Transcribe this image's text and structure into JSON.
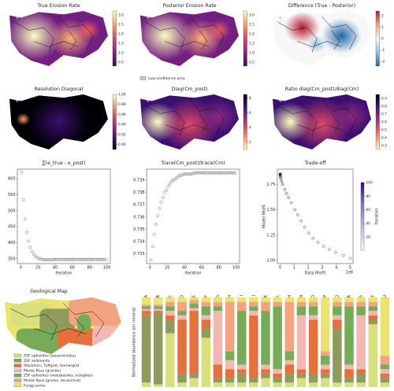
{
  "chart_data": [
    {
      "type": "heatmap",
      "title": "True Erosion Rate",
      "colormap": [
        "#2c115f",
        "#721f81",
        "#b73779",
        "#f1605d",
        "#feb078",
        "#fcfdbf"
      ],
      "base": 1,
      "colorbar_lim": [
        0.3,
        3.2
      ],
      "colorbar_ticks": [
        0.5,
        {
          "value": 1,
          "label": "1.0"
        },
        1.5,
        {
          "value": 2,
          "label": "2.0"
        },
        2.5,
        {
          "value": 3,
          "label": "3.0"
        }
      ]
    },
    {
      "type": "heatmap",
      "title": "Posterior Erosion Rate",
      "colormap": [
        "#2c115f",
        "#721f81",
        "#b73779",
        "#f1605d",
        "#feb078",
        "#fcfdbf"
      ],
      "base": 1,
      "colorbar_lim": [
        0.3,
        3.2
      ],
      "colorbar_ticks": [
        0.5,
        {
          "value": 1,
          "label": "1.0"
        },
        1.5,
        {
          "value": 2,
          "label": "2.0"
        },
        2.5,
        {
          "value": 3,
          "label": "3.0"
        }
      ],
      "annotation": "Low-confidence area"
    },
    {
      "type": "heatmap",
      "title": "Difference (True - Posterior)",
      "colormap": [
        "#2166ac",
        "#92c5de",
        "#f7f7f7",
        "#f4a582",
        "#b2182b"
      ],
      "base": 2,
      "colorbar_lim": [
        -2.4,
        2.4
      ],
      "colorbar_ticks": [
        -2,
        -1,
        0,
        1,
        2
      ]
    },
    {
      "type": "heatmap",
      "title": "Resolution Diagonal",
      "colormap": [
        "#000004",
        "#3b0f70",
        "#8c2981",
        "#de4968",
        "#fe9f6d",
        "#fcfdbf"
      ],
      "base": 0,
      "colorbar_lim": [
        0.89,
        1.0
      ],
      "colorbar_ticks": [
        {
          "value": 0.9,
          "label": "0.90"
        },
        0.92,
        0.94,
        0.96,
        0.98,
        {
          "value": 1,
          "label": "1.00"
        }
      ]
    },
    {
      "type": "heatmap",
      "title": "Diag(Cm_post)",
      "colormap": [
        "#fcfdbf",
        "#fe9f6d",
        "#de4968",
        "#8c2981",
        "#3b0f70",
        "#000004"
      ],
      "base": 4,
      "colorbar_lim": [
        1,
        8.5
      ],
      "colorbar_ticks": [
        2,
        4,
        6,
        8
      ]
    },
    {
      "type": "heatmap",
      "title": "Ratio diag(Cm_post)/diag(Cm)",
      "colormap": [
        "#fcfdbf",
        "#fe9f6d",
        "#de4968",
        "#8c2981",
        "#3b0f70",
        "#000004"
      ],
      "base": 4,
      "colorbar_lim": [
        0.25,
        0.95
      ],
      "colorbar_ticks": [
        0.3,
        0.4,
        0.5,
        0.6,
        0.7,
        0.8,
        0.9
      ]
    },
    {
      "type": "scatter",
      "title": "∑(e_true - e_post)",
      "xlabel": "Iteration",
      "color": "#555555",
      "x": [
        1,
        3,
        5,
        7,
        9,
        11,
        13,
        15,
        17,
        19,
        21,
        23,
        25,
        27,
        29,
        31,
        33,
        35,
        37,
        39,
        41,
        43,
        45,
        47,
        49,
        51,
        53,
        55,
        57,
        59,
        61,
        63,
        65,
        67,
        69,
        71,
        73,
        75,
        77,
        79,
        81,
        83,
        85,
        87,
        89,
        91,
        93,
        95,
        97,
        99
      ],
      "values": [
        620,
        534,
        474,
        433,
        405,
        386,
        373,
        364,
        358,
        354,
        351,
        349,
        348,
        347,
        347,
        347,
        347,
        347,
        347,
        348,
        348,
        348,
        348,
        348,
        348,
        348,
        348,
        348,
        348,
        348,
        348,
        348,
        348,
        348,
        348,
        348,
        348,
        348,
        348,
        348,
        348,
        348,
        348,
        348,
        348,
        348,
        348,
        348,
        348,
        348
      ],
      "xlim": [
        -4,
        104
      ],
      "xticks": [
        0,
        20,
        40,
        60,
        80,
        100
      ],
      "ylim": [
        335,
        630
      ],
      "yticks": [
        350,
        400,
        450,
        500,
        550,
        600
      ]
    },
    {
      "type": "scatter",
      "title": "Trace(Cm_post)/trace(Cm)",
      "xlabel": "Iteration",
      "color": "#555555",
      "x": [
        1,
        3,
        5,
        7,
        9,
        11,
        13,
        15,
        17,
        19,
        21,
        23,
        25,
        27,
        29,
        31,
        33,
        35,
        37,
        39,
        41,
        43,
        45,
        47,
        49,
        51,
        53,
        55,
        57,
        59,
        61,
        63,
        65,
        67,
        69,
        71,
        73,
        75,
        77,
        79,
        81,
        83,
        85,
        87,
        89,
        91,
        93,
        95,
        97,
        99
      ],
      "values": [
        0.7325,
        0.7336,
        0.7346,
        0.7354,
        0.7361,
        0.7367,
        0.7372,
        0.7376,
        0.738,
        0.7382,
        0.7385,
        0.7387,
        0.7389,
        0.739,
        0.7391,
        0.7392,
        0.7393,
        0.7394,
        0.7394,
        0.7395,
        0.7395,
        0.7395,
        0.7395,
        0.7395,
        0.7395,
        0.7396,
        0.7396,
        0.7396,
        0.7396,
        0.7396,
        0.7396,
        0.7396,
        0.7396,
        0.7396,
        0.7396,
        0.7396,
        0.7396,
        0.7396,
        0.7396,
        0.7396,
        0.7396,
        0.7396,
        0.7396,
        0.7396,
        0.7396,
        0.7396,
        0.7396,
        0.7396,
        0.7396,
        0.7396
      ],
      "xlim": [
        -4,
        104
      ],
      "xticks": [
        0,
        20,
        40,
        60,
        80,
        100
      ],
      "ylim": [
        0.7322,
        0.7399
      ],
      "yticks": [
        0.733,
        0.734,
        0.735,
        0.736,
        0.737,
        0.738,
        0.739
      ]
    },
    {
      "type": "scatter",
      "title": "Trade-off",
      "xlabel": "Data Misfit",
      "ylabel": "Model Misfit",
      "x_offset_label": "1e8",
      "colorbar_label": "Iteration",
      "colormap": [
        "#fcfbfd",
        "#bcbddc",
        "#807dba",
        "#3f007d"
      ],
      "x": [
        5.0,
        4.5,
        3.95,
        3.5,
        3.1,
        2.7,
        2.35,
        2.05,
        1.75,
        1.5,
        1.25,
        1.05,
        0.8,
        0.6,
        0.45,
        0.33,
        0.18,
        0.1,
        0.04,
        0.02,
        0.01,
        0.005,
        0.003,
        0.002,
        0.001
      ],
      "values": [
        1.02,
        1.05,
        1.08,
        1.11,
        1.14,
        1.18,
        1.22,
        1.27,
        1.33,
        1.39,
        1.45,
        1.5,
        1.57,
        1.62,
        1.66,
        1.7,
        1.75,
        1.78,
        1.81,
        1.83,
        1.84,
        1.845,
        1.85,
        1.85,
        1.85
      ],
      "iterations": [
        1,
        2,
        3,
        4,
        5,
        6,
        7,
        8,
        9,
        10,
        11,
        12,
        14,
        16,
        18,
        20,
        25,
        30,
        40,
        50,
        60,
        70,
        80,
        90,
        100
      ],
      "xlim": [
        -0.2,
        5.2
      ],
      "xticks": [
        0,
        1,
        2,
        3,
        4,
        5
      ],
      "ylim": [
        0.97,
        1.9
      ],
      "yticks": [
        {
          "value": 1,
          "label": "1.00"
        },
        1.25,
        {
          "value": 1.5,
          "label": "1.50"
        },
        1.75
      ],
      "colorbar_lim": [
        1,
        100
      ],
      "colorbar_ticks": [
        20,
        40,
        60,
        80,
        100
      ]
    },
    {
      "type": "map",
      "title": "Geological Map"
    },
    {
      "type": "stacked_bar",
      "ylabel": "Normalized abundance per mineral",
      "ylim": [
        0,
        1
      ],
      "categories": [
        "A",
        "B",
        "C",
        "D",
        "E",
        "F",
        "G",
        "H",
        "I",
        "J",
        "K",
        "L",
        "M",
        "N",
        "O",
        "P",
        "Q",
        "R",
        "S",
        "T",
        "U"
      ],
      "series": [
        {
          "name": "ZSF ophiolites (serpentinites)",
          "color": "#d8df7e",
          "values": [
            0.05,
            0.03,
            0.6,
            0.05,
            0.1,
            0.55,
            0.05,
            0.05,
            0.05,
            0.05,
            0.1,
            0.05,
            0.05,
            0.1,
            0.05,
            0.1,
            0.05,
            0.05,
            0.05,
            0.7,
            0.05
          ]
        },
        {
          "name": "ZSF sediments",
          "color": "#8e9b5c",
          "values": [
            0.75,
            0.8,
            0.15,
            0.1,
            0.05,
            0.1,
            0.05,
            0.05,
            0.1,
            0.05,
            0.05,
            0.05,
            0.1,
            0.05,
            0.1,
            0.05,
            0.6,
            0.05,
            0.1,
            0.05,
            0.05
          ]
        },
        {
          "name": "Stockhorn, Tuftgrat, Gornergrat",
          "color": "#e6703c",
          "values": [
            0.05,
            0.02,
            0.05,
            0.6,
            0.7,
            0.1,
            0.15,
            0.1,
            0.05,
            0.7,
            0.05,
            0.05,
            0.1,
            0.05,
            0.6,
            0.05,
            0.1,
            0.1,
            0.05,
            0.05,
            0.05
          ]
        },
        {
          "name": "Monte Rosa (granite)",
          "color": "#f2b7b5",
          "values": [
            0.02,
            0.02,
            0.05,
            0.05,
            0.03,
            0.05,
            0.6,
            0.1,
            0.05,
            0.05,
            0.05,
            0.05,
            0.05,
            0.6,
            0.05,
            0.05,
            0.05,
            0.05,
            0.6,
            0.05,
            0.05
          ]
        },
        {
          "name": "ZSF ophiolites (metabasites, eclogites)",
          "color": "#76ac57",
          "values": [
            0.03,
            0.03,
            0.05,
            0.05,
            0.05,
            0.1,
            0.05,
            0.1,
            0.6,
            0.05,
            0.6,
            0.7,
            0.1,
            0.1,
            0.1,
            0.1,
            0.1,
            0.65,
            0.1,
            0.05,
            0.05
          ]
        },
        {
          "name": "Monte Rosa (gneiss, micaschist)",
          "color": "#f3a47e",
          "values": [
            0.02,
            0.02,
            0.05,
            0.1,
            0.04,
            0.05,
            0.05,
            0.55,
            0.1,
            0.05,
            0.1,
            0.05,
            0.55,
            0.05,
            0.05,
            0.05,
            0.05,
            0.05,
            0.05,
            0.05,
            0.1
          ]
        },
        {
          "name": "Furgg series",
          "color": "#ebe370",
          "values": [
            0.08,
            0.08,
            0.05,
            0.05,
            0.03,
            0.05,
            0.05,
            0.05,
            0.05,
            0.05,
            0.05,
            0.05,
            0.05,
            0.05,
            0.05,
            0.6,
            0.05,
            0.05,
            0.05,
            0.05,
            0.65
          ]
        }
      ]
    }
  ]
}
